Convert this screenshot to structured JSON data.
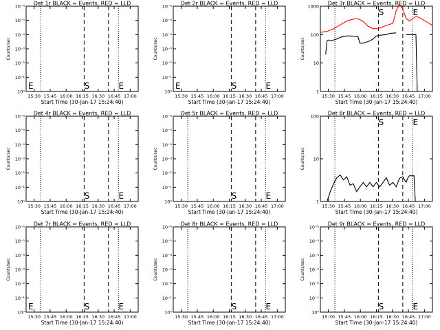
{
  "figure": {
    "xlabel": "Start Time (30-Jan-17 15:24:40)",
    "ylabel": "Counts/sec"
  },
  "chart_data": [
    {
      "type": "line",
      "title": "Det 1r BLACK = Events, RED = LLD",
      "xlim": [
        15.3,
        17.0
      ],
      "yscale": "log",
      "xtick_labels": [
        "15:30",
        "15:45",
        "16:00",
        "16:15",
        "16:30",
        "16:45",
        "17:00"
      ],
      "ytick_labels": [
        "10⁰",
        "10⁻¹",
        "10⁻²",
        "10⁻³",
        "10⁻⁴",
        "10⁻⁵",
        "10⁻⁶"
      ],
      "vlines": {
        "dotted": [
          15.52,
          16.7
        ],
        "dashed": [
          16.18,
          16.55
        ]
      },
      "markers": [
        {
          "label": "E",
          "x": 15.3
        },
        {
          "label": "S",
          "x": 16.18
        },
        {
          "label": "E",
          "x": 16.7
        }
      ],
      "series": []
    },
    {
      "type": "line",
      "title": "Det 2r BLACK = Events, RED = LLD",
      "xlim": [
        15.3,
        17.0
      ],
      "yscale": "log",
      "xtick_labels": [
        "15:30",
        "15:45",
        "16:00",
        "16:15",
        "16:30",
        "16:45",
        "17:00"
      ],
      "ytick_labels": [
        "10⁰",
        "10⁻¹",
        "10⁻²",
        "10⁻³",
        "10⁻⁴",
        "10⁻⁵",
        "10⁻⁶"
      ],
      "vlines": {
        "dotted": [
          15.3,
          16.7
        ],
        "dashed": [
          16.18,
          16.55
        ]
      },
      "markers": [
        {
          "label": "E",
          "x": 15.3
        },
        {
          "label": "S",
          "x": 16.18
        },
        {
          "label": "E",
          "x": 16.7
        }
      ],
      "series": []
    },
    {
      "type": "line",
      "title": "Det 3r BLACK = Events, RED = LLD",
      "xlim": [
        15.3,
        17.0
      ],
      "yscale": "log",
      "xtick_labels": [
        "15:30",
        "15:45",
        "16:00",
        "16:15",
        "16:30",
        "16:45",
        "17:00"
      ],
      "ytick_labels": [
        "1",
        "10",
        "100",
        "1000"
      ],
      "vlines": {
        "dotted": [
          15.52,
          16.7
        ],
        "dashed": [
          16.18,
          16.55
        ]
      },
      "markers": [
        {
          "label": "S",
          "x": 16.18
        },
        {
          "label": "E",
          "x": 16.7
        }
      ],
      "series": [
        {
          "color": "#ff0000",
          "points": [
            [
              15.3,
              120
            ],
            [
              15.4,
              130
            ],
            [
              15.5,
              160
            ],
            [
              15.6,
              220
            ],
            [
              15.7,
              300
            ],
            [
              15.8,
              350
            ],
            [
              15.87,
              360
            ],
            [
              15.95,
              290
            ],
            [
              16.02,
              200
            ],
            [
              16.1,
              160
            ],
            [
              16.2,
              170
            ],
            [
              16.3,
              210
            ],
            [
              16.4,
              250
            ],
            [
              16.45,
              700
            ],
            [
              16.5,
              1150
            ],
            [
              16.55,
              800
            ],
            [
              16.6,
              370
            ],
            [
              16.65,
              300
            ],
            [
              16.7,
              360
            ],
            [
              16.75,
              430
            ],
            [
              16.8,
              400
            ],
            [
              16.9,
              290
            ],
            [
              17.0,
              210
            ]
          ]
        },
        {
          "color": "#000000",
          "points": [
            [
              15.38,
              20
            ],
            [
              15.4,
              60
            ],
            [
              15.42,
              65
            ],
            [
              15.45,
              60
            ],
            [
              15.5,
              65
            ],
            [
              15.55,
              70
            ],
            [
              15.6,
              80
            ],
            [
              15.7,
              90
            ],
            [
              15.8,
              88
            ],
            [
              15.87,
              85
            ],
            [
              15.9,
              50
            ],
            [
              15.95,
              50
            ],
            [
              16.0,
              55
            ],
            [
              16.05,
              60
            ],
            [
              16.1,
              70
            ],
            [
              16.15,
              90
            ],
            [
              16.2,
              95
            ],
            [
              16.3,
              100
            ],
            [
              16.35,
              110
            ],
            [
              16.45,
              115
            ]
          ]
        },
        {
          "color": "#000000",
          "points": [
            [
              16.6,
              100
            ],
            [
              16.75,
              100
            ],
            [
              16.77,
              1
            ]
          ]
        }
      ]
    },
    {
      "type": "line",
      "title": "Det 4r BLACK = Events, RED = LLD",
      "xlim": [
        15.3,
        17.0
      ],
      "yscale": "log",
      "xtick_labels": [
        "15:30",
        "15:45",
        "16:00",
        "16:15",
        "16:30",
        "16:45",
        "17:00"
      ],
      "ytick_labels": [
        "10⁰",
        "10⁻¹",
        "10⁻²",
        "10⁻³",
        "10⁻⁴",
        "10⁻⁵",
        "10⁻⁶"
      ],
      "vlines": {
        "dotted": [
          15.52,
          16.7
        ],
        "dashed": [
          16.18,
          16.55
        ]
      },
      "markers": [
        {
          "label": "S",
          "x": 16.18
        },
        {
          "label": "E",
          "x": 16.7
        }
      ],
      "series": []
    },
    {
      "type": "line",
      "title": "Det 5r BLACK = Events, RED = LLD",
      "xlim": [
        15.3,
        17.0
      ],
      "yscale": "log",
      "xtick_labels": [
        "15:30",
        "15:45",
        "16:00",
        "16:15",
        "16:30",
        "16:45",
        "17:00"
      ],
      "ytick_labels": [
        "10⁰",
        "10⁻¹",
        "10⁻²",
        "10⁻³",
        "10⁻⁴",
        "10⁻⁵",
        "10⁻⁶"
      ],
      "vlines": {
        "dotted": [
          15.52,
          16.7
        ],
        "dashed": [
          16.18,
          16.55
        ]
      },
      "markers": [
        {
          "label": "S",
          "x": 16.18
        },
        {
          "label": "E",
          "x": 16.7
        }
      ],
      "series": []
    },
    {
      "type": "line",
      "title": "Det 6r BLACK = Events, RED = LLD",
      "xlim": [
        15.3,
        17.0
      ],
      "yscale": "log",
      "xtick_labels": [
        "15:30",
        "15:45",
        "16:00",
        "16:15",
        "16:30",
        "16:45",
        "17:00"
      ],
      "ytick_labels": [
        "1",
        "10",
        "100"
      ],
      "vlines": {
        "dotted": [
          15.52,
          16.7
        ],
        "dashed": [
          16.18,
          16.55
        ]
      },
      "markers": [
        {
          "label": "S",
          "x": 16.18
        },
        {
          "label": "E",
          "x": 16.7
        }
      ],
      "series": [
        {
          "color": "#000000",
          "points": [
            [
              15.4,
              1
            ],
            [
              15.45,
              1.7
            ],
            [
              15.5,
              2.6
            ],
            [
              15.55,
              3.6
            ],
            [
              15.6,
              4.2
            ],
            [
              15.65,
              3.2
            ],
            [
              15.7,
              3.8
            ],
            [
              15.75,
              2.4
            ],
            [
              15.8,
              2.6
            ],
            [
              15.85,
              1.7
            ],
            [
              15.9,
              2.2
            ],
            [
              15.95,
              2.8
            ],
            [
              16.0,
              2.2
            ],
            [
              16.05,
              2.8
            ],
            [
              16.1,
              2.2
            ],
            [
              16.15,
              2.8
            ],
            [
              16.2,
              2.2
            ],
            [
              16.25,
              2.8
            ],
            [
              16.3,
              3.6
            ],
            [
              16.35,
              2.4
            ],
            [
              16.4,
              2.8
            ],
            [
              16.45,
              2.2
            ],
            [
              16.5,
              3.5
            ],
            [
              16.55,
              3.8
            ],
            [
              16.6,
              2.8
            ],
            [
              16.63,
              3.6
            ],
            [
              16.65,
              4.0
            ],
            [
              16.72,
              4.0
            ],
            [
              16.74,
              1
            ]
          ]
        }
      ]
    },
    {
      "type": "line",
      "title": "Det 7r BLACK = Events, RED = LLD",
      "xlim": [
        15.3,
        17.0
      ],
      "yscale": "log",
      "xtick_labels": [
        "15:30",
        "15:45",
        "16:00",
        "16:15",
        "16:30",
        "16:45",
        "17:00"
      ],
      "ytick_labels": [
        "10⁰",
        "10⁻¹",
        "10⁻²",
        "10⁻³",
        "10⁻⁴",
        "10⁻⁵",
        "10⁻⁶"
      ],
      "vlines": {
        "dotted": [
          15.3,
          15.52,
          16.7
        ],
        "dashed": [
          16.18,
          16.55
        ]
      },
      "markers": [
        {
          "label": "E",
          "x": 15.3
        },
        {
          "label": "S",
          "x": 16.18
        },
        {
          "label": "E",
          "x": 16.7
        }
      ],
      "series": []
    },
    {
      "type": "line",
      "title": "Det 8r BLACK = Events, RED = LLD",
      "xlim": [
        15.3,
        17.0
      ],
      "yscale": "log",
      "xtick_labels": [
        "15:30",
        "15:45",
        "16:00",
        "16:15",
        "16:30",
        "16:45",
        "17:00"
      ],
      "ytick_labels": [
        "10⁰",
        "10⁻¹",
        "10⁻²",
        "10⁻³",
        "10⁻⁴",
        "10⁻⁵",
        "10⁻⁶"
      ],
      "vlines": {
        "dotted": [
          15.52,
          16.7
        ],
        "dashed": [
          16.18,
          16.55
        ]
      },
      "markers": [
        {
          "label": "S",
          "x": 16.18
        },
        {
          "label": "E",
          "x": 16.7
        }
      ],
      "series": []
    },
    {
      "type": "line",
      "title": "Det 9r BLACK = Events, RED = LLD",
      "xlim": [
        15.3,
        17.0
      ],
      "yscale": "log",
      "xtick_labels": [
        "15:30",
        "15:45",
        "16:00",
        "16:15",
        "16:30",
        "16:45",
        "17:00"
      ],
      "ytick_labels": [
        "10⁰",
        "10⁻¹",
        "10⁻²",
        "10⁻³",
        "10⁻⁴",
        "10⁻⁵",
        "10⁻⁶"
      ],
      "vlines": {
        "dotted": [
          15.52,
          16.7
        ],
        "dashed": [
          16.18,
          16.55
        ]
      },
      "markers": [
        {
          "label": "S",
          "x": 16.18
        },
        {
          "label": "E",
          "x": 16.7
        }
      ],
      "series": []
    }
  ]
}
